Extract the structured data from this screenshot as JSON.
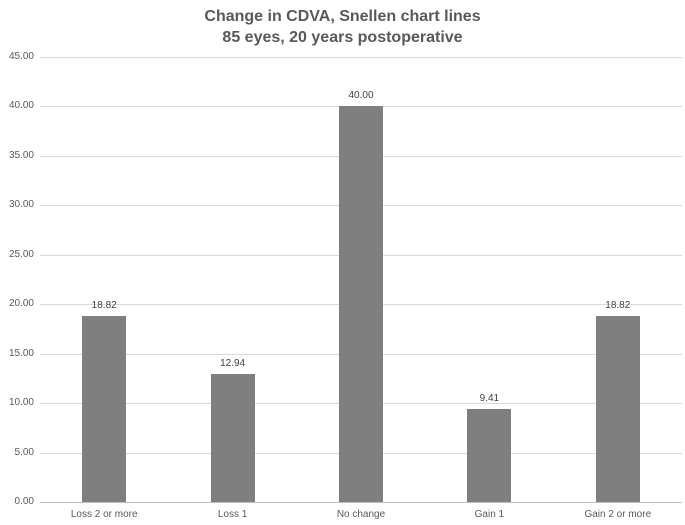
{
  "title": {
    "line1": "Change in CDVA, Snellen chart lines",
    "line2": "85 eyes, 20 years postoperative"
  },
  "chart_data": {
    "type": "bar",
    "title": "Change in CDVA, Snellen chart lines",
    "subtitle": "85 eyes, 20 years postoperative",
    "categories": [
      "Loss 2 or more",
      "Loss 1",
      "No change",
      "Gain 1",
      "Gain 2 or more"
    ],
    "values": [
      18.82,
      12.94,
      40.0,
      9.41,
      18.82
    ],
    "value_labels": [
      "18.82",
      "12.94",
      "40.00",
      "9.41",
      "18.82"
    ],
    "xlabel": "",
    "ylabel": "",
    "ylim": [
      0,
      45
    ],
    "ytick_step": 5,
    "ytick_labels": [
      "0.00",
      "5.00",
      "10.00",
      "15.00",
      "20.00",
      "25.00",
      "30.00",
      "35.00",
      "40.00",
      "45.00"
    ],
    "grid": true,
    "legend": false,
    "legend_position": "none",
    "colors": {
      "bar": "#7f7f7f",
      "gridline": "#d9d9d9",
      "axis_line": "#bfbfbf",
      "title_text": "#595959",
      "tick_text": "#595959",
      "value_label_text": "#404040",
      "background": "#ffffff"
    }
  }
}
